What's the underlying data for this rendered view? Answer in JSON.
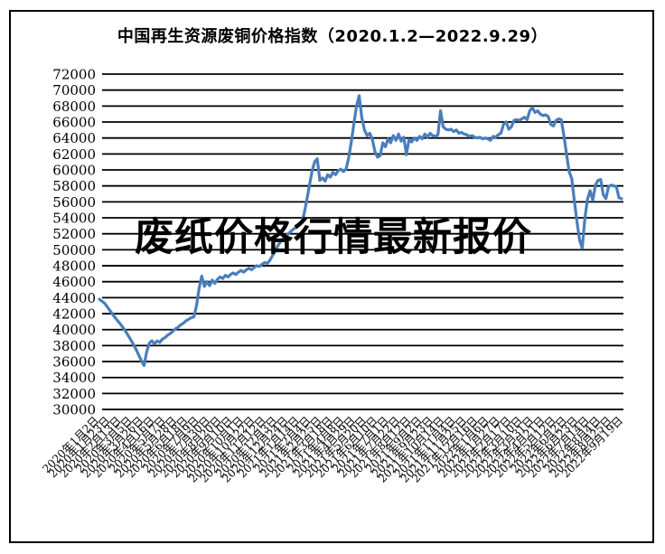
{
  "window": {
    "background_color": "#ffffff",
    "frame_border_color": "#000000"
  },
  "chart_data": {
    "type": "line",
    "title": "中国再生资源废铜价格指数（2020.1.2—2022.9.29）",
    "watermark": "废纸价格行情最新报价",
    "xlabel": "",
    "ylabel": "",
    "ylim": [
      30000,
      72000
    ],
    "y_tick_step": 2000,
    "grid": "horizontal",
    "legend_position": "none",
    "line_color": "#4a7ebb",
    "grid_color": "#000000",
    "text_color": "#000000",
    "y_tick_labels": [
      "72000",
      "70000",
      "68000",
      "66000",
      "64000",
      "62000",
      "60000",
      "58000",
      "56000",
      "54000",
      "52000",
      "50000",
      "48000",
      "46000",
      "44000",
      "42000",
      "40000",
      "38000",
      "36000",
      "34000",
      "32000",
      "30000"
    ],
    "x_tick_labels": [
      "2020年1月2日",
      "2020年1月23日",
      "2020年2月13日",
      "2020年3月5日",
      "2020年3月26日",
      "2020年4月16日",
      "2020年5月7日",
      "2020年5月28日",
      "2020年6月18日",
      "2020年7月9日",
      "2020年7月30日",
      "2020年8月20日",
      "2020年9月10日",
      "2020年10月1日",
      "2020年10月22日",
      "2020年11月12日",
      "2020年12月3日",
      "2020年12月24日",
      "2021年1月14日",
      "2021年2月4日",
      "2021年2月25日",
      "2021年3月18日",
      "2021年4月8日",
      "2021年4月29日",
      "2021年5月20日",
      "2021年6月10日",
      "2021年7月1日",
      "2021年7月22日",
      "2021年8月12日",
      "2021年9月2日",
      "2021年9月23日",
      "2021年10月14日",
      "2021年11月4日",
      "2021年11月25日",
      "2021年12月16日",
      "2022年1月6日",
      "2022年1月27日",
      "2022年2月17日",
      "2022年3月10日",
      "2022年3月31日",
      "2022年4月21日",
      "2022年5月12日",
      "2022年6月2日",
      "2022年6月23日",
      "2022年7月14日",
      "2022年8月4日",
      "2022年8月25日",
      "2022年9月19日"
    ],
    "series": [
      {
        "name": "废铜价格指数",
        "values": [
          43800,
          43550,
          43300,
          42850,
          42400,
          41950,
          41500,
          41100,
          40700,
          40250,
          39800,
          39250,
          38700,
          38100,
          37500,
          36800,
          36100,
          35500,
          37200,
          38300,
          38600,
          38200,
          38600,
          38400,
          38800,
          39000,
          39300,
          39500,
          39800,
          40100,
          40300,
          40600,
          40800,
          41100,
          41300,
          41500,
          41600,
          43000,
          45200,
          46700,
          45400,
          46000,
          45500,
          46200,
          45800,
          46300,
          46600,
          46400,
          46800,
          46600,
          46900,
          47100,
          46900,
          47200,
          47400,
          47200,
          47500,
          47700,
          47500,
          47800,
          48000,
          47900,
          48200,
          48400,
          48300,
          48700,
          49300,
          49900,
          50500,
          51000,
          51400,
          51700,
          52000,
          52300,
          52600,
          52800,
          53100,
          53400,
          54500,
          56200,
          58000,
          59800,
          61000,
          61400,
          58700,
          59000,
          58600,
          59400,
          59100,
          59700,
          59400,
          59900,
          60100,
          59800,
          60100,
          61500,
          63500,
          65800,
          68000,
          69300,
          66500,
          65000,
          64300,
          64600,
          63800,
          62300,
          61600,
          61800,
          63400,
          62900,
          63900,
          63400,
          64300,
          63700,
          64500,
          63600,
          64100,
          61900,
          63800,
          63500,
          64000,
          63700,
          64200,
          63900,
          64500,
          64100,
          64600,
          64300,
          64200,
          64400,
          67400,
          65400,
          65100,
          65000,
          65100,
          64800,
          65000,
          64600,
          64700,
          64500,
          64400,
          64200,
          64300,
          64100,
          64000,
          64100,
          63900,
          64000,
          63900,
          63700,
          64200,
          64100,
          64400,
          64600,
          65700,
          66000,
          65100,
          65400,
          66200,
          66300,
          66200,
          66400,
          66600,
          66300,
          67400,
          67800,
          67200,
          67400,
          67000,
          66800,
          66900,
          66700,
          65700,
          65500,
          66200,
          66400,
          66300,
          64300,
          62000,
          59800,
          58900,
          56100,
          53500,
          51200,
          50200,
          53900,
          56300,
          57400,
          56200,
          58100,
          58700,
          58800,
          56900,
          56400,
          57900,
          58100,
          58000,
          57900,
          56500,
          56400
        ]
      }
    ]
  }
}
